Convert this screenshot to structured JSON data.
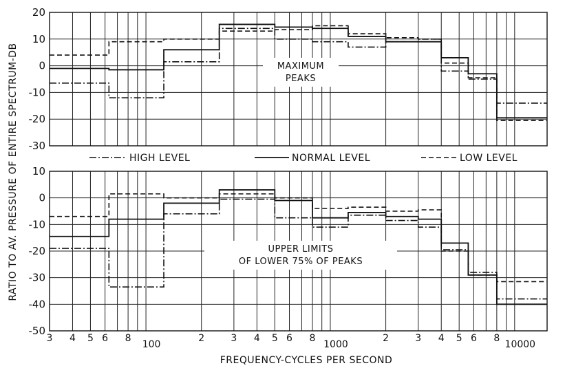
{
  "chart_data": [
    {
      "type": "line",
      "title": "",
      "annotation": [
        "MAXIMUM",
        "PEAKS"
      ],
      "xlabel": "FREQUENCY-CYCLES PER SECOND",
      "ylabel": "RATIO TO AV. PRESSURE OF ENTIRE SPECTRUM-DB",
      "x_scale": "log",
      "xlim": [
        30,
        15000
      ],
      "ylim": [
        -30,
        20
      ],
      "yticks": [
        20,
        10,
        0,
        -10,
        -20,
        -30
      ],
      "grid": true,
      "bands_hz": [
        [
          30,
          63
        ],
        [
          63,
          125
        ],
        [
          125,
          250
        ],
        [
          250,
          500
        ],
        [
          500,
          800
        ],
        [
          800,
          1250
        ],
        [
          1250,
          2000
        ],
        [
          2000,
          3000
        ],
        [
          3000,
          4000
        ],
        [
          4000,
          5600
        ],
        [
          5600,
          8000
        ],
        [
          8000,
          15000
        ]
      ],
      "series": [
        {
          "name": "HIGH LEVEL",
          "style": "dash-dot",
          "values": [
            -6.5,
            -12,
            1.5,
            14,
            10,
            9,
            7,
            9,
            10,
            -2,
            -5,
            -14
          ]
        },
        {
          "name": "NORMAL LEVEL",
          "style": "solid",
          "values": [
            -1,
            -1.5,
            6,
            15.5,
            14.5,
            14,
            11,
            9,
            9,
            3,
            -3,
            -19.5
          ]
        },
        {
          "name": "LOW LEVEL",
          "style": "dashed",
          "values": [
            4,
            9,
            10,
            13,
            13.5,
            15,
            12,
            10.5,
            10,
            1,
            -4.5,
            -20.5
          ]
        }
      ]
    },
    {
      "type": "line",
      "title": "",
      "annotation": [
        "UPPER LIMITS",
        "OF LOWER 75% OF PEAKS"
      ],
      "xlabel": "FREQUENCY-CYCLES PER SECOND",
      "ylabel": "RATIO TO AV. PRESSURE OF ENTIRE SPECTRUM-DB",
      "x_scale": "log",
      "xlim": [
        30,
        15000
      ],
      "ylim": [
        -50,
        10
      ],
      "yticks": [
        10,
        0,
        -10,
        -20,
        -30,
        -40,
        -50
      ],
      "grid": true,
      "bands_hz": [
        [
          30,
          63
        ],
        [
          63,
          125
        ],
        [
          125,
          250
        ],
        [
          250,
          500
        ],
        [
          500,
          800
        ],
        [
          800,
          1250
        ],
        [
          1250,
          2000
        ],
        [
          2000,
          3000
        ],
        [
          3000,
          4000
        ],
        [
          4000,
          5600
        ],
        [
          5600,
          8000
        ],
        [
          8000,
          15000
        ]
      ],
      "series": [
        {
          "name": "HIGH LEVEL",
          "style": "dash-dot",
          "values": [
            -19,
            -33.5,
            -6,
            -0.5,
            -7.5,
            -11,
            -6.5,
            -8.5,
            -11,
            -19.5,
            -28,
            -38
          ]
        },
        {
          "name": "NORMAL LEVEL",
          "style": "solid",
          "values": [
            -14.5,
            -8,
            -2,
            3,
            -1,
            -7.5,
            -5.5,
            -7,
            -8,
            -17,
            -29,
            -40
          ]
        },
        {
          "name": "LOW LEVEL",
          "style": "dashed",
          "values": [
            -7,
            1.5,
            0,
            1.5,
            0,
            -4,
            -3.5,
            -5,
            -4.5,
            -20,
            -29,
            -31.5
          ]
        }
      ]
    }
  ],
  "x_tick_labels": [
    {
      "value": 30,
      "label": "3"
    },
    {
      "value": 40,
      "label": "4"
    },
    {
      "value": 50,
      "label": "5"
    },
    {
      "value": 60,
      "label": "6"
    },
    {
      "value": 80,
      "label": "8"
    },
    {
      "value": 100,
      "label": "100"
    },
    {
      "value": 200,
      "label": "2"
    },
    {
      "value": 300,
      "label": "3"
    },
    {
      "value": 400,
      "label": "4"
    },
    {
      "value": 500,
      "label": "5"
    },
    {
      "value": 600,
      "label": "6"
    },
    {
      "value": 800,
      "label": "8"
    },
    {
      "value": 1000,
      "label": "1000"
    },
    {
      "value": 2000,
      "label": "2"
    },
    {
      "value": 3000,
      "label": "3"
    },
    {
      "value": 4000,
      "label": "4"
    },
    {
      "value": 5000,
      "label": "5"
    },
    {
      "value": 6000,
      "label": "6"
    },
    {
      "value": 8000,
      "label": "8"
    },
    {
      "value": 10000,
      "label": "10000"
    }
  ],
  "legend": {
    "placement": "between-panels",
    "items": [
      {
        "label": "HIGH LEVEL",
        "style": "dash-dot"
      },
      {
        "label": "NORMAL LEVEL",
        "style": "solid"
      },
      {
        "label": "LOW LEVEL",
        "style": "dashed"
      }
    ]
  }
}
